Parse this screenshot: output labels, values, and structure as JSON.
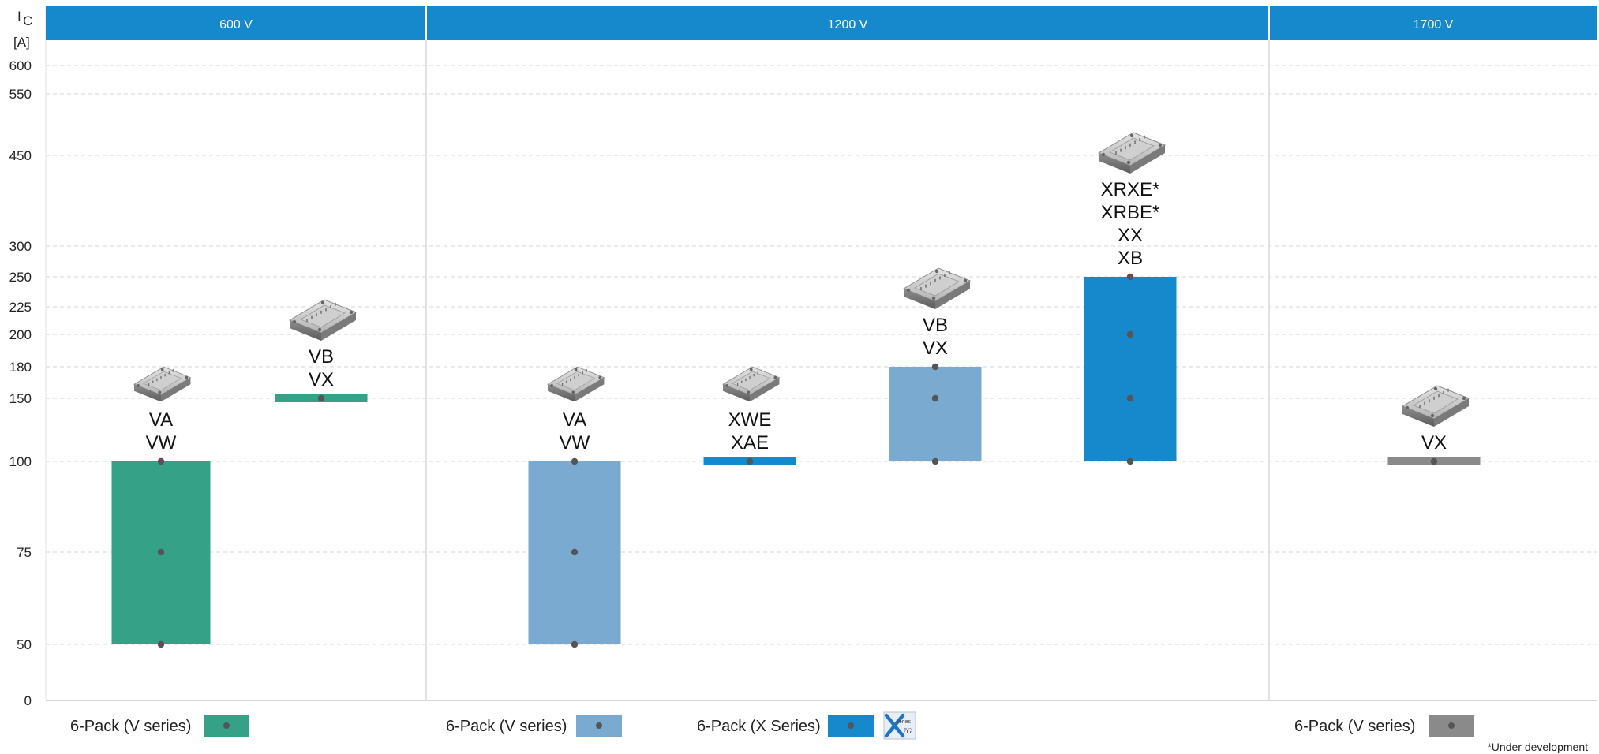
{
  "chart_data": {
    "type": "bar",
    "y_axis": {
      "label": "I",
      "label_sub": "C",
      "unit": "[A]",
      "ticks": [
        0,
        50,
        75,
        100,
        150,
        180,
        200,
        225,
        250,
        300,
        450,
        550,
        600
      ],
      "grid": true
    },
    "voltage_groups": [
      {
        "label": "600 V"
      },
      {
        "label": "1200 V"
      },
      {
        "label": "1700 V"
      }
    ],
    "bars": [
      {
        "group": "600 V",
        "range": [
          50,
          100
        ],
        "points": [
          50,
          75,
          100
        ],
        "labels": [
          "VA",
          "VW"
        ],
        "color": "#35a186",
        "module_size": "small"
      },
      {
        "group": "600 V",
        "range": [
          150,
          150
        ],
        "points": [
          150
        ],
        "labels": [
          "VB",
          "VX"
        ],
        "color": "#35a186",
        "module_size": "large"
      },
      {
        "group": "1200 V",
        "range": [
          50,
          100
        ],
        "points": [
          50,
          75,
          100
        ],
        "labels": [
          "VA",
          "VW"
        ],
        "color": "#7aaad0",
        "module_size": "small"
      },
      {
        "group": "1200 V",
        "range": [
          100,
          100
        ],
        "points": [
          100
        ],
        "labels": [
          "XWE",
          "XAE"
        ],
        "color": "#1688cc",
        "module_size": "small"
      },
      {
        "group": "1200 V",
        "range": [
          100,
          180
        ],
        "points": [
          100,
          150,
          180
        ],
        "labels": [
          "VB",
          "VX"
        ],
        "color": "#7aaad0",
        "module_size": "large"
      },
      {
        "group": "1200 V",
        "range": [
          100,
          250
        ],
        "points": [
          100,
          150,
          200,
          250
        ],
        "labels": [
          "XRXE*",
          "XRBE*",
          "XX",
          "XB"
        ],
        "color": "#1688cc",
        "module_size": "large"
      },
      {
        "group": "1700 V",
        "range": [
          100,
          100
        ],
        "points": [
          100
        ],
        "labels": [
          "VX"
        ],
        "color": "#8a8a8a",
        "module_size": "large"
      }
    ],
    "legend": [
      {
        "group": "600 V",
        "text": "6-Pack (V series)",
        "color": "#35a186"
      },
      {
        "group": "1200 V",
        "text": "6-Pack (V series)",
        "color": "#7aaad0"
      },
      {
        "group": "1200 V",
        "text": "6-Pack (X Series)",
        "color": "#1688cc",
        "badge": "x-series-7g-icon"
      },
      {
        "group": "1700 V",
        "text": "6-Pack (V series)",
        "color": "#8a8a8a"
      }
    ],
    "footnote": "*Under development"
  },
  "colors": {
    "header": "#1688cc",
    "grid": "#d6d6d6",
    "dot": "#555555"
  },
  "x_series_badge": {
    "small_text": "series",
    "gen": "7G"
  }
}
